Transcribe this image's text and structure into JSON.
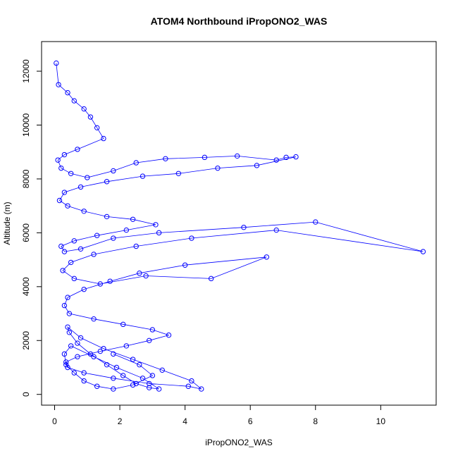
{
  "chart_data": {
    "type": "scatter",
    "mode": "lines+markers",
    "title": "ATOM4 Northbound iPropONO2_WAS",
    "xlabel": "iPropONO2_WAS",
    "ylabel": "Altitude (m)",
    "xlim": [
      -0.4,
      11.7
    ],
    "ylim": [
      -400,
      13100
    ],
    "xticks": [
      0,
      2,
      4,
      6,
      8,
      10
    ],
    "yticks": [
      0,
      2000,
      4000,
      6000,
      8000,
      10000,
      12000
    ],
    "grid": false,
    "color": "#0000ff",
    "marker": "open-circle",
    "series": [
      {
        "name": "",
        "x": [
          0.05,
          0.12,
          0.4,
          0.6,
          0.9,
          1.1,
          1.3,
          1.5,
          0.7,
          0.3,
          0.1,
          0.2,
          0.5,
          1.0,
          1.8,
          2.5,
          3.4,
          4.6,
          5.6,
          6.8,
          7.1,
          7.4,
          6.2,
          5.0,
          3.8,
          2.7,
          1.6,
          0.8,
          0.3,
          0.15,
          0.4,
          0.9,
          1.6,
          2.4,
          3.1,
          2.2,
          1.3,
          0.6,
          0.2,
          0.3,
          0.8,
          1.8,
          3.2,
          5.8,
          8.0,
          11.3,
          6.8,
          4.2,
          2.5,
          1.2,
          0.5,
          0.25,
          0.6,
          1.4,
          2.8,
          4.8,
          6.5,
          4.0,
          2.6,
          1.7,
          0.9,
          0.4,
          0.3,
          0.45,
          1.2,
          2.1,
          3.0,
          3.5,
          2.9,
          2.2,
          1.4,
          0.7,
          0.35,
          0.4,
          0.9,
          1.8,
          2.9,
          4.1,
          4.5,
          4.2,
          3.3,
          2.4,
          1.5,
          0.8,
          0.4,
          0.45,
          0.7,
          1.1,
          1.6,
          2.1,
          2.5,
          2.9,
          3.2,
          2.7,
          1.9,
          1.2,
          0.5,
          0.3,
          0.35,
          0.6,
          0.9,
          1.3,
          1.8,
          2.4,
          3.0,
          2.6,
          1.8
        ],
        "y": [
          12300,
          11500,
          11200,
          10900,
          10600,
          10300,
          9900,
          9500,
          9100,
          8900,
          8700,
          8400,
          8200,
          8050,
          8300,
          8600,
          8750,
          8800,
          8850,
          8700,
          8800,
          8820,
          8500,
          8400,
          8200,
          8100,
          7900,
          7700,
          7500,
          7200,
          7000,
          6800,
          6600,
          6500,
          6300,
          6100,
          5900,
          5700,
          5500,
          5300,
          5400,
          5800,
          6000,
          6200,
          6400,
          5300,
          6100,
          5800,
          5500,
          5200,
          4900,
          4600,
          4300,
          4100,
          4400,
          4300,
          5100,
          4800,
          4500,
          4200,
          3900,
          3600,
          3300,
          3000,
          2800,
          2600,
          2400,
          2200,
          2000,
          1800,
          1600,
          1400,
          1200,
          1000,
          800,
          600,
          400,
          300,
          200,
          500,
          900,
          1300,
          1700,
          2100,
          2500,
          2300,
          1900,
          1500,
          1100,
          700,
          400,
          250,
          200,
          600,
          1000,
          1400,
          1800,
          1500,
          1100,
          800,
          500,
          300,
          200,
          350,
          700,
          1100,
          1500
        ]
      }
    ]
  }
}
